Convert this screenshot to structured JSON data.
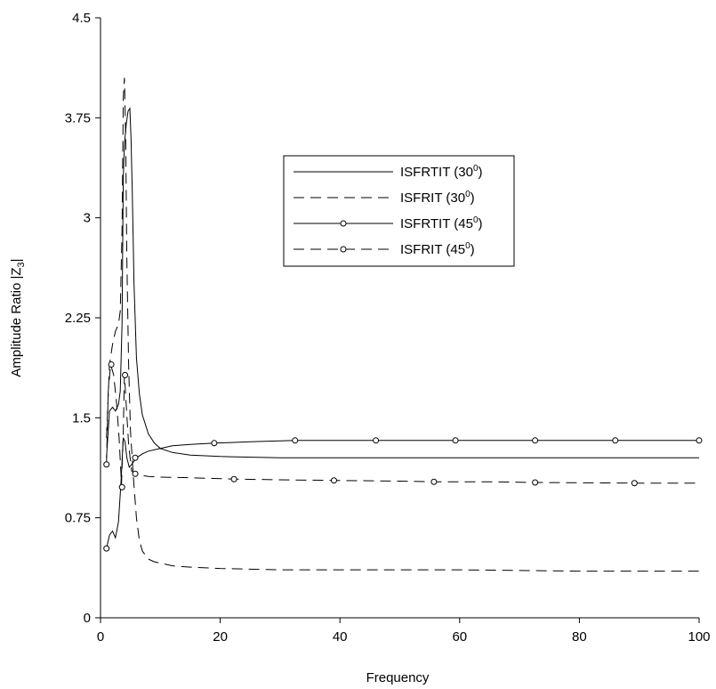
{
  "chart_data": {
    "type": "line",
    "title": "",
    "xlabel": "Frequency",
    "ylabel": "Amplitude Ratio |Z",
    "ylabel_subscript": "3",
    "ylabel_suffix": "|",
    "xlim": [
      0,
      100
    ],
    "ylim": [
      0,
      4.5
    ],
    "xticks": [
      0,
      20,
      40,
      60,
      80,
      100
    ],
    "yticks": [
      0,
      0.75,
      1.5,
      2.25,
      3,
      3.75,
      4.5
    ],
    "ytick_labels": [
      "0",
      "0.75",
      "1.5",
      "2.25",
      "3",
      "3.75",
      "4.5"
    ],
    "grid": false,
    "legend_position": "upper-center-right",
    "series": [
      {
        "name": "ISFRTIT (30",
        "name_sup": "0",
        "name_end": ")",
        "style": "solid",
        "marker": "none",
        "x": [
          1,
          1.5,
          2,
          2.5,
          3,
          3.3,
          3.6,
          3.8,
          4,
          4.3,
          4.6,
          4.9,
          5.1,
          5.3,
          5.6,
          6,
          6.5,
          7,
          8,
          9,
          10,
          12,
          15,
          20,
          30,
          40,
          60,
          80,
          100
        ],
        "y": [
          1.2,
          1.55,
          1.58,
          1.55,
          1.6,
          1.7,
          2.2,
          3.3,
          3.55,
          3.7,
          3.8,
          3.82,
          3.6,
          3.2,
          2.5,
          1.95,
          1.68,
          1.52,
          1.38,
          1.31,
          1.27,
          1.24,
          1.22,
          1.21,
          1.2,
          1.2,
          1.2,
          1.2,
          1.2
        ]
      },
      {
        "name": "ISFRIT (30",
        "name_sup": "0",
        "name_end": ")",
        "style": "dashed",
        "marker": "none",
        "x": [
          1,
          1.5,
          2,
          2.5,
          3,
          3.3,
          3.6,
          3.8,
          4,
          4.2,
          4.4,
          4.7,
          5,
          5.5,
          6,
          6.5,
          7,
          8,
          9,
          10,
          12,
          15,
          20,
          30,
          40,
          60,
          80,
          100
        ],
        "y": [
          1.35,
          1.9,
          2.05,
          2.15,
          2.2,
          2.3,
          2.9,
          3.9,
          4.05,
          3.6,
          2.7,
          1.9,
          1.4,
          1.05,
          0.75,
          0.58,
          0.5,
          0.44,
          0.42,
          0.41,
          0.39,
          0.38,
          0.37,
          0.36,
          0.36,
          0.36,
          0.35,
          0.35
        ]
      },
      {
        "name": "ISFRTIT (45",
        "name_sup": "0",
        "name_end": ")",
        "style": "solid",
        "marker": "circle",
        "x": [
          1,
          1.5,
          2,
          2.5,
          3,
          3.4,
          3.8,
          4.1,
          4.4,
          4.8,
          5.2,
          6,
          7,
          8,
          10,
          12,
          15,
          19,
          25,
          32.5,
          40,
          46,
          59.3,
          72.6,
          86,
          100
        ],
        "y": [
          0.52,
          0.62,
          0.65,
          0.6,
          0.72,
          1.0,
          1.35,
          1.32,
          1.2,
          1.13,
          1.15,
          1.2,
          1.23,
          1.25,
          1.27,
          1.29,
          1.3,
          1.31,
          1.32,
          1.33,
          1.33,
          1.33,
          1.33,
          1.33,
          1.33,
          1.33
        ],
        "markers_x": [
          1,
          5.8,
          19,
          32.5,
          46,
          59.3,
          72.6,
          86,
          100
        ],
        "markers_y": [
          0.52,
          1.2,
          1.31,
          1.33,
          1.33,
          1.33,
          1.33,
          1.33,
          1.33
        ]
      },
      {
        "name": "ISFRIT (45",
        "name_sup": "0",
        "name_end": ")",
        "style": "dashed",
        "marker": "circle",
        "x": [
          1,
          1.3,
          1.7,
          2.2,
          2.7,
          3.1,
          3.5,
          3.8,
          4,
          4.3,
          4.7,
          5.2,
          5.8,
          6.5,
          8,
          10,
          15,
          22.3,
          30,
          39,
          50,
          55.7,
          65,
          72.6,
          89.2,
          100
        ],
        "y": [
          1.15,
          1.7,
          1.9,
          1.82,
          1.6,
          1.35,
          1.0,
          1.4,
          1.82,
          1.6,
          1.3,
          1.1,
          1.08,
          1.07,
          1.06,
          1.055,
          1.05,
          1.04,
          1.035,
          1.03,
          1.025,
          1.02,
          1.02,
          1.015,
          1.01,
          1.01
        ],
        "markers_x": [
          1,
          1.8,
          3.6,
          4.1,
          5.8,
          22.3,
          39,
          55.7,
          72.6,
          89.2
        ],
        "markers_y": [
          1.15,
          1.9,
          0.98,
          1.82,
          1.08,
          1.04,
          1.03,
          1.02,
          1.015,
          1.01
        ]
      }
    ]
  }
}
